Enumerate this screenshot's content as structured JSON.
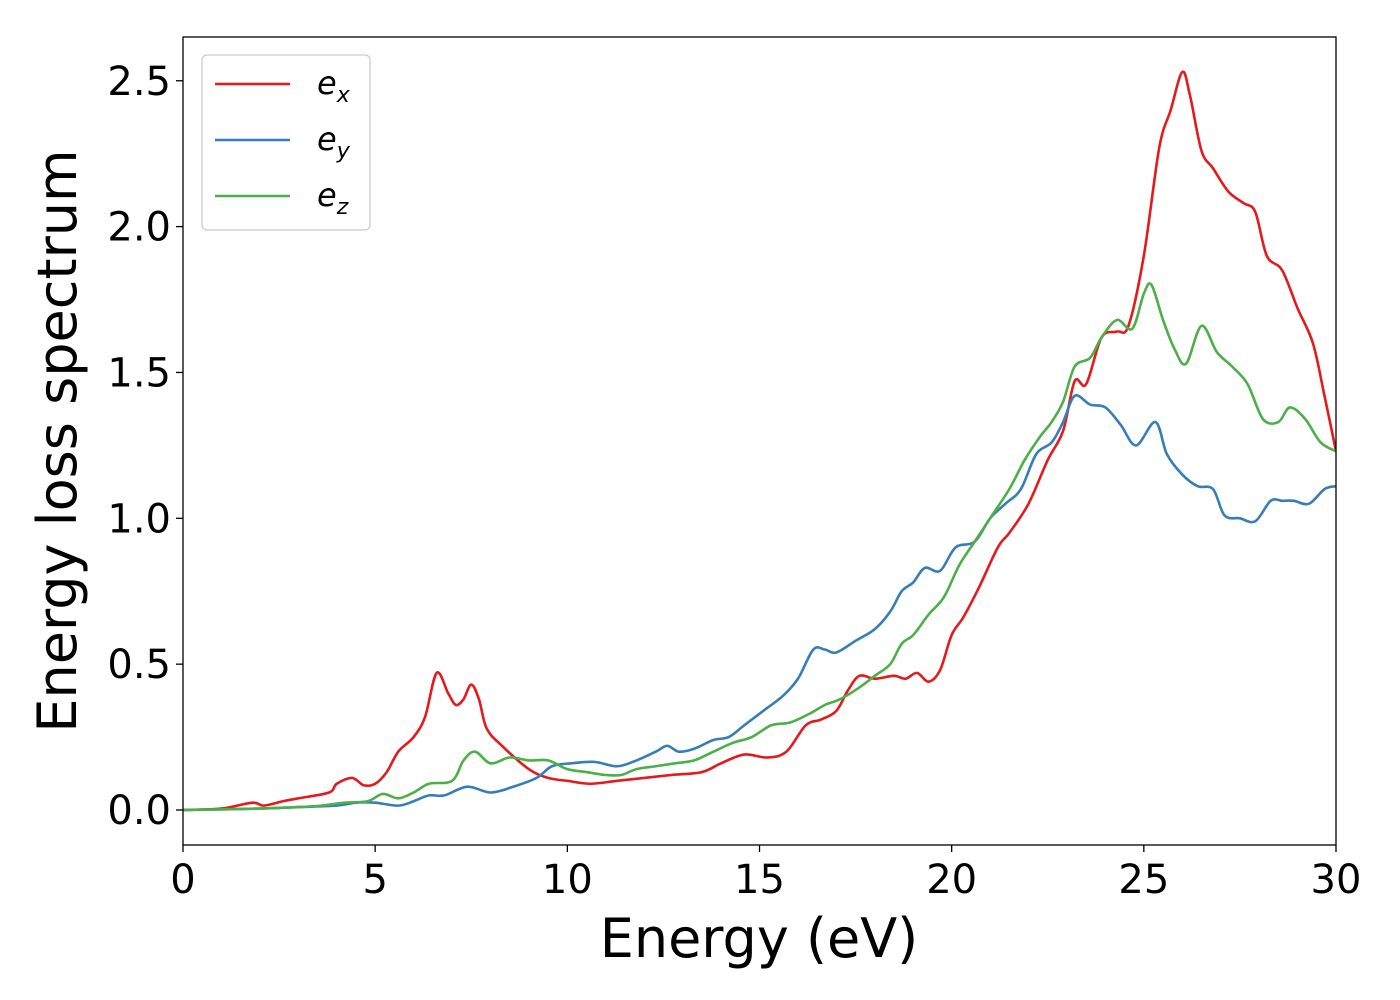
{
  "chart_data": {
    "type": "line",
    "title": "",
    "xlabel": "Energy (eV)",
    "ylabel": "Energy loss spectrum",
    "xlim": [
      0,
      30
    ],
    "ylim": [
      -0.12,
      2.65
    ],
    "xticks": [
      0,
      5,
      10,
      15,
      20,
      25,
      30
    ],
    "xtick_labels": [
      "0",
      "5",
      "10",
      "15",
      "20",
      "25",
      "30"
    ],
    "yticks": [
      0.0,
      0.5,
      1.0,
      1.5,
      2.0,
      2.5
    ],
    "ytick_labels": [
      "0.0",
      "0.5",
      "1.0",
      "1.5",
      "2.0",
      "2.5"
    ],
    "grid": false,
    "legend_position": "top-left",
    "series": [
      {
        "name": "e_x",
        "label_base": "e",
        "label_sub": "x",
        "color": "#e41a1c",
        "points": [
          [
            0,
            0.0
          ],
          [
            1.0,
            0.005
          ],
          [
            1.8,
            0.025
          ],
          [
            2.1,
            0.015
          ],
          [
            2.6,
            0.03
          ],
          [
            3.0,
            0.04
          ],
          [
            3.8,
            0.06
          ],
          [
            4.0,
            0.09
          ],
          [
            4.4,
            0.11
          ],
          [
            4.7,
            0.085
          ],
          [
            5.0,
            0.09
          ],
          [
            5.3,
            0.13
          ],
          [
            5.6,
            0.2
          ],
          [
            6.0,
            0.25
          ],
          [
            6.3,
            0.32
          ],
          [
            6.6,
            0.47
          ],
          [
            6.9,
            0.4
          ],
          [
            7.1,
            0.36
          ],
          [
            7.3,
            0.38
          ],
          [
            7.5,
            0.43
          ],
          [
            7.7,
            0.38
          ],
          [
            7.9,
            0.28
          ],
          [
            8.3,
            0.22
          ],
          [
            9.0,
            0.14
          ],
          [
            9.5,
            0.11
          ],
          [
            10.0,
            0.1
          ],
          [
            10.6,
            0.09
          ],
          [
            11.3,
            0.1
          ],
          [
            12.0,
            0.11
          ],
          [
            12.7,
            0.12
          ],
          [
            13.5,
            0.13
          ],
          [
            14.0,
            0.16
          ],
          [
            14.6,
            0.19
          ],
          [
            15.2,
            0.18
          ],
          [
            15.7,
            0.2
          ],
          [
            16.2,
            0.29
          ],
          [
            16.6,
            0.31
          ],
          [
            17.0,
            0.34
          ],
          [
            17.3,
            0.41
          ],
          [
            17.6,
            0.46
          ],
          [
            18.0,
            0.45
          ],
          [
            18.5,
            0.46
          ],
          [
            18.8,
            0.45
          ],
          [
            19.1,
            0.47
          ],
          [
            19.4,
            0.44
          ],
          [
            19.7,
            0.48
          ],
          [
            20.0,
            0.6
          ],
          [
            20.3,
            0.66
          ],
          [
            20.7,
            0.76
          ],
          [
            21.2,
            0.9
          ],
          [
            21.5,
            0.95
          ],
          [
            22.0,
            1.05
          ],
          [
            22.5,
            1.2
          ],
          [
            22.9,
            1.3
          ],
          [
            23.2,
            1.47
          ],
          [
            23.5,
            1.46
          ],
          [
            23.9,
            1.62
          ],
          [
            24.3,
            1.64
          ],
          [
            24.6,
            1.66
          ],
          [
            25.0,
            1.9
          ],
          [
            25.4,
            2.27
          ],
          [
            25.7,
            2.4
          ],
          [
            26.0,
            2.53
          ],
          [
            26.2,
            2.45
          ],
          [
            26.5,
            2.26
          ],
          [
            26.8,
            2.2
          ],
          [
            27.2,
            2.12
          ],
          [
            27.6,
            2.08
          ],
          [
            27.9,
            2.05
          ],
          [
            28.2,
            1.9
          ],
          [
            28.6,
            1.85
          ],
          [
            29.0,
            1.72
          ],
          [
            29.4,
            1.6
          ],
          [
            29.7,
            1.42
          ],
          [
            30.0,
            1.23
          ]
        ]
      },
      {
        "name": "e_y",
        "label_base": "e",
        "label_sub": "y",
        "color": "#377eb8",
        "points": [
          [
            0,
            0.0
          ],
          [
            2.0,
            0.005
          ],
          [
            3.0,
            0.01
          ],
          [
            4.0,
            0.015
          ],
          [
            4.5,
            0.025
          ],
          [
            5.0,
            0.025
          ],
          [
            5.6,
            0.015
          ],
          [
            6.0,
            0.03
          ],
          [
            6.4,
            0.05
          ],
          [
            6.8,
            0.05
          ],
          [
            7.4,
            0.08
          ],
          [
            8.0,
            0.06
          ],
          [
            8.6,
            0.08
          ],
          [
            9.2,
            0.11
          ],
          [
            9.6,
            0.15
          ],
          [
            10.1,
            0.16
          ],
          [
            10.7,
            0.165
          ],
          [
            11.3,
            0.15
          ],
          [
            11.8,
            0.17
          ],
          [
            12.3,
            0.2
          ],
          [
            12.6,
            0.22
          ],
          [
            12.9,
            0.2
          ],
          [
            13.3,
            0.21
          ],
          [
            13.8,
            0.24
          ],
          [
            14.2,
            0.25
          ],
          [
            14.6,
            0.29
          ],
          [
            15.1,
            0.34
          ],
          [
            15.6,
            0.39
          ],
          [
            16.0,
            0.45
          ],
          [
            16.4,
            0.55
          ],
          [
            16.7,
            0.55
          ],
          [
            17.0,
            0.54
          ],
          [
            17.5,
            0.58
          ],
          [
            18.0,
            0.62
          ],
          [
            18.4,
            0.68
          ],
          [
            18.7,
            0.75
          ],
          [
            19.0,
            0.78
          ],
          [
            19.3,
            0.83
          ],
          [
            19.7,
            0.82
          ],
          [
            20.1,
            0.9
          ],
          [
            20.6,
            0.92
          ],
          [
            21.0,
            1.0
          ],
          [
            21.4,
            1.05
          ],
          [
            21.8,
            1.1
          ],
          [
            22.2,
            1.22
          ],
          [
            22.6,
            1.26
          ],
          [
            22.9,
            1.33
          ],
          [
            23.2,
            1.42
          ],
          [
            23.6,
            1.39
          ],
          [
            24.0,
            1.38
          ],
          [
            24.4,
            1.32
          ],
          [
            24.8,
            1.25
          ],
          [
            25.3,
            1.33
          ],
          [
            25.6,
            1.22
          ],
          [
            26.0,
            1.15
          ],
          [
            26.4,
            1.11
          ],
          [
            26.8,
            1.1
          ],
          [
            27.1,
            1.01
          ],
          [
            27.5,
            1.0
          ],
          [
            27.9,
            0.99
          ],
          [
            28.3,
            1.06
          ],
          [
            28.6,
            1.06
          ],
          [
            28.9,
            1.06
          ],
          [
            29.3,
            1.05
          ],
          [
            29.7,
            1.1
          ],
          [
            30.0,
            1.11
          ]
        ]
      },
      {
        "name": "e_z",
        "label_base": "e",
        "label_sub": "z",
        "color": "#4daf4a",
        "points": [
          [
            0,
            0.0
          ],
          [
            2.0,
            0.005
          ],
          [
            3.0,
            0.01
          ],
          [
            3.6,
            0.015
          ],
          [
            4.2,
            0.025
          ],
          [
            4.8,
            0.03
          ],
          [
            5.2,
            0.055
          ],
          [
            5.6,
            0.04
          ],
          [
            6.0,
            0.06
          ],
          [
            6.4,
            0.09
          ],
          [
            7.0,
            0.1
          ],
          [
            7.3,
            0.17
          ],
          [
            7.6,
            0.2
          ],
          [
            8.0,
            0.16
          ],
          [
            8.5,
            0.18
          ],
          [
            9.0,
            0.17
          ],
          [
            9.5,
            0.17
          ],
          [
            10.0,
            0.14
          ],
          [
            10.5,
            0.13
          ],
          [
            11.0,
            0.12
          ],
          [
            11.4,
            0.12
          ],
          [
            11.8,
            0.14
          ],
          [
            12.3,
            0.15
          ],
          [
            12.8,
            0.16
          ],
          [
            13.3,
            0.17
          ],
          [
            13.8,
            0.2
          ],
          [
            14.3,
            0.23
          ],
          [
            14.8,
            0.25
          ],
          [
            15.3,
            0.29
          ],
          [
            15.8,
            0.3
          ],
          [
            16.3,
            0.33
          ],
          [
            16.7,
            0.36
          ],
          [
            17.1,
            0.38
          ],
          [
            17.6,
            0.42
          ],
          [
            18.0,
            0.46
          ],
          [
            18.4,
            0.5
          ],
          [
            18.7,
            0.57
          ],
          [
            19.0,
            0.6
          ],
          [
            19.4,
            0.67
          ],
          [
            19.8,
            0.73
          ],
          [
            20.2,
            0.84
          ],
          [
            20.6,
            0.92
          ],
          [
            21.0,
            1.0
          ],
          [
            21.5,
            1.1
          ],
          [
            21.9,
            1.2
          ],
          [
            22.3,
            1.28
          ],
          [
            22.6,
            1.33
          ],
          [
            22.9,
            1.4
          ],
          [
            23.2,
            1.52
          ],
          [
            23.6,
            1.55
          ],
          [
            23.9,
            1.62
          ],
          [
            24.3,
            1.68
          ],
          [
            24.7,
            1.65
          ],
          [
            25.0,
            1.77
          ],
          [
            25.2,
            1.8
          ],
          [
            25.5,
            1.68
          ],
          [
            25.8,
            1.58
          ],
          [
            26.1,
            1.53
          ],
          [
            26.5,
            1.66
          ],
          [
            26.9,
            1.57
          ],
          [
            27.3,
            1.52
          ],
          [
            27.7,
            1.46
          ],
          [
            28.1,
            1.34
          ],
          [
            28.5,
            1.33
          ],
          [
            28.8,
            1.38
          ],
          [
            29.2,
            1.34
          ],
          [
            29.6,
            1.26
          ],
          [
            30.0,
            1.23
          ]
        ]
      }
    ]
  }
}
